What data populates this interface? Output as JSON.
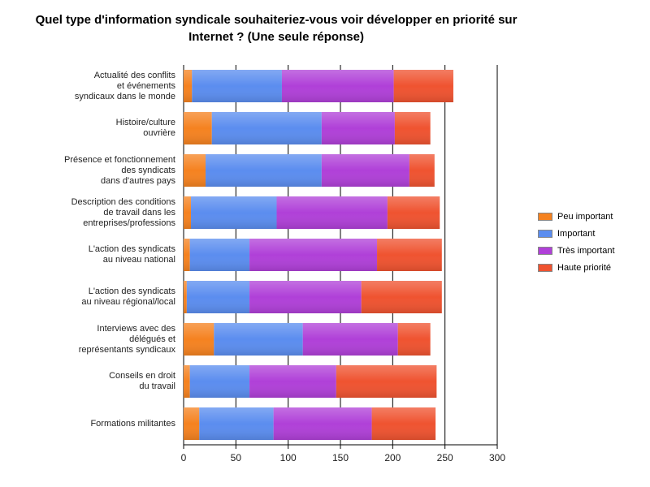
{
  "chart_data": {
    "type": "bar",
    "orientation": "horizontal",
    "stacked": true,
    "title": "Quel type d'information syndicale souhaiteriez-vous voir développer en priorité sur Internet ? (Une seule réponse)",
    "xlabel": "",
    "ylabel": "",
    "xlim": [
      0,
      300
    ],
    "xticks": [
      "0",
      "50",
      "100",
      "150",
      "200",
      "250",
      "300"
    ],
    "grid": true,
    "legend_position": "right",
    "categories": [
      "Actualité des conflits et événements syndicaux dans le monde",
      "Histoire/culture ouvrière",
      "Présence et fonctionnement des syndicats dans d'autres pays",
      "Description des conditions de travail dans les entreprises/professions",
      "L'action des syndicats au niveau national",
      "L'action des syndicats au niveau régional/local",
      "Interviews avec des délégués et représentants syndicaux",
      "Conseils en droit du travail",
      "Formations militantes"
    ],
    "category_lines": [
      [
        "Actualité des conflits",
        "et événements",
        "syndicaux dans le monde"
      ],
      [
        "Histoire/culture",
        "ouvrière"
      ],
      [
        "Présence et fonctionnement",
        "des syndicats",
        "dans d'autres pays"
      ],
      [
        "Description des conditions",
        "de travail dans les",
        "entreprises/professions"
      ],
      [
        "L'action des syndicats",
        "au niveau national"
      ],
      [
        "L'action des syndicats",
        "au niveau régional/local"
      ],
      [
        "Interviews avec des",
        "délégués et",
        "représentants syndicaux"
      ],
      [
        "Conseils en droit",
        "du travail"
      ],
      [
        "Formations militantes"
      ]
    ],
    "series": [
      {
        "name": "Peu important",
        "color": "#f58220",
        "values": [
          8,
          27,
          21,
          7,
          6,
          3,
          29,
          6,
          15
        ]
      },
      {
        "name": "Important",
        "color": "#5b8def",
        "values": [
          86,
          105,
          111,
          82,
          57,
          60,
          85,
          57,
          71
        ]
      },
      {
        "name": "Très important",
        "color": "#b040d8",
        "values": [
          107,
          70,
          84,
          106,
          122,
          107,
          91,
          83,
          94
        ]
      },
      {
        "name": "Haute priorité",
        "color": "#ef5330",
        "values": [
          57,
          34,
          24,
          50,
          62,
          77,
          31,
          96,
          61
        ]
      }
    ]
  }
}
